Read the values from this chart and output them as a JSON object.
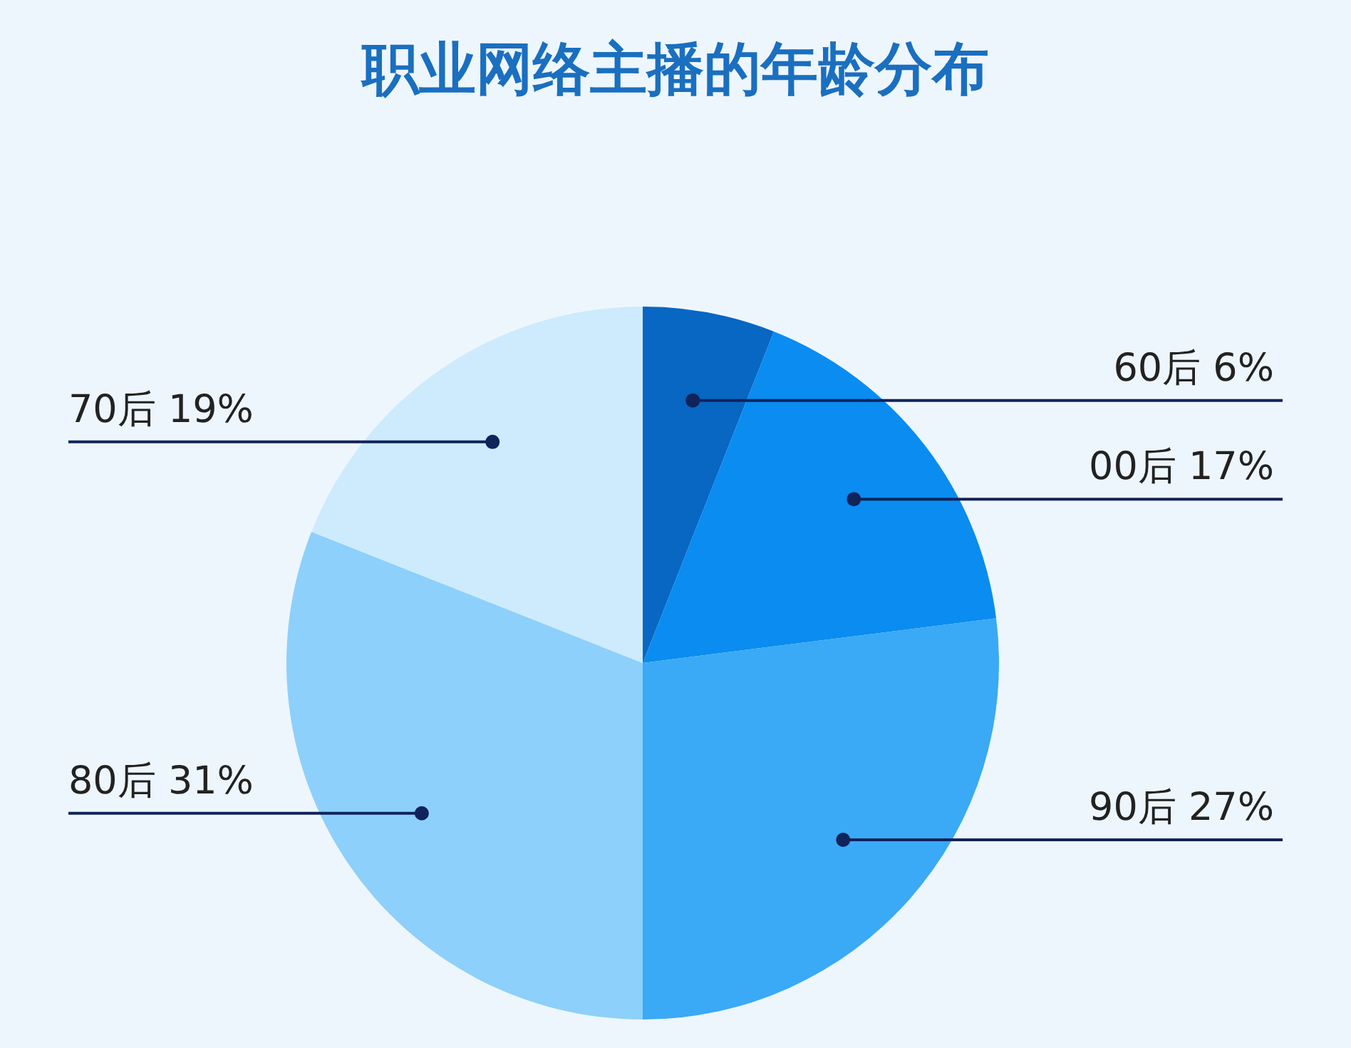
{
  "chart_data": {
    "type": "pie",
    "title": "职业网络主播的年龄分布",
    "categories": [
      "60后",
      "00后",
      "90后",
      "80后",
      "70后"
    ],
    "values": [
      6,
      17,
      27,
      31,
      19
    ],
    "value_labels": [
      "6%",
      "17%",
      "27%",
      "31%",
      "19%"
    ],
    "colors": [
      "#0767c2",
      "#0a8cf0",
      "#3aa9f6",
      "#8dd0fb",
      "#cdebfc"
    ]
  }
}
